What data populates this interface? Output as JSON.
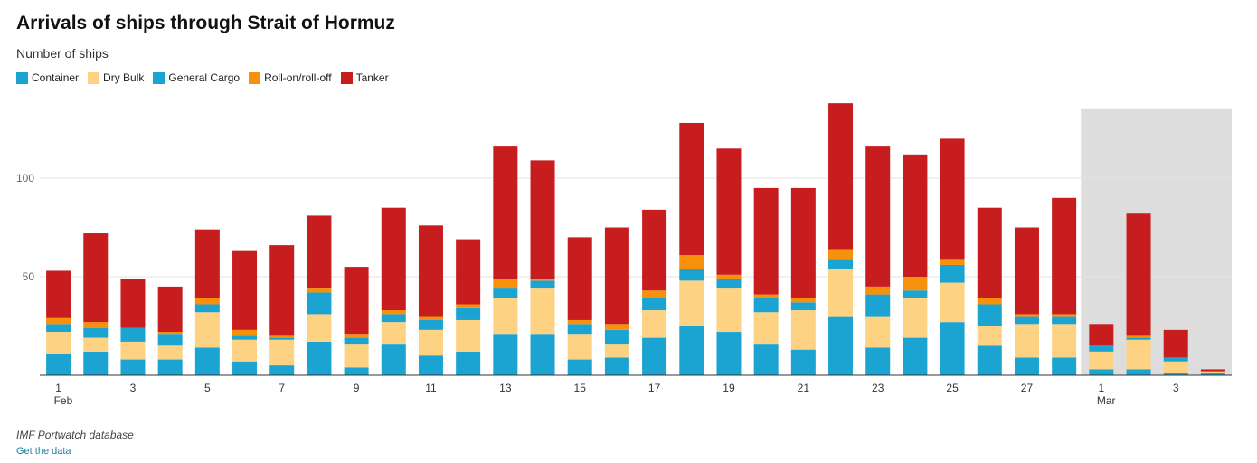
{
  "header": {
    "title": "Arrivals of ships through Strait of Hormuz",
    "subtitle": "Number of ships"
  },
  "footer": {
    "source": "IMF Portwatch database",
    "get_data": "Get the data"
  },
  "chart_data": {
    "type": "bar",
    "stacked": true,
    "title": "Arrivals of ships through Strait of Hormuz",
    "ylabel": "Number of ships",
    "ylim": [
      0,
      140
    ],
    "yticks": [
      50,
      100
    ],
    "grid": true,
    "legend_position": "top-left",
    "categories": [
      "Feb 1",
      "Feb 2",
      "Feb 3",
      "Feb 4",
      "Feb 5",
      "Feb 6",
      "Feb 7",
      "Feb 8",
      "Feb 9",
      "Feb 10",
      "Feb 11",
      "Feb 12",
      "Feb 13",
      "Feb 14",
      "Feb 15",
      "Feb 16",
      "Feb 17",
      "Feb 18",
      "Feb 19",
      "Feb 20",
      "Feb 21",
      "Feb 22",
      "Feb 23",
      "Feb 24",
      "Feb 25",
      "Feb 26",
      "Feb 27",
      "Feb 28",
      "Mar 1",
      "Mar 2",
      "Mar 3",
      "Mar 4"
    ],
    "xtick_labels": [
      {
        "index": 0,
        "label": "1",
        "sub": "Feb"
      },
      {
        "index": 2,
        "label": "3"
      },
      {
        "index": 4,
        "label": "5"
      },
      {
        "index": 6,
        "label": "7"
      },
      {
        "index": 8,
        "label": "9"
      },
      {
        "index": 10,
        "label": "11"
      },
      {
        "index": 12,
        "label": "13"
      },
      {
        "index": 14,
        "label": "15"
      },
      {
        "index": 16,
        "label": "17"
      },
      {
        "index": 18,
        "label": "19"
      },
      {
        "index": 20,
        "label": "21"
      },
      {
        "index": 22,
        "label": "23"
      },
      {
        "index": 24,
        "label": "25"
      },
      {
        "index": 26,
        "label": "27"
      },
      {
        "index": 28,
        "label": "1",
        "sub": "Mar"
      },
      {
        "index": 30,
        "label": "3"
      }
    ],
    "highlight_from_index": 28,
    "highlight_color": "#dddddd",
    "series": [
      {
        "name": "Container",
        "color": "#1ba3d2",
        "values": [
          11,
          12,
          8,
          8,
          14,
          7,
          5,
          17,
          4,
          16,
          10,
          12,
          21,
          21,
          8,
          9,
          19,
          25,
          22,
          16,
          13,
          30,
          14,
          19,
          27,
          15,
          9,
          9,
          3,
          3,
          1,
          1
        ]
      },
      {
        "name": "Dry Bulk",
        "color": "#fdd283",
        "values": [
          11,
          7,
          9,
          7,
          18,
          11,
          13,
          14,
          12,
          11,
          13,
          16,
          18,
          23,
          13,
          7,
          14,
          23,
          22,
          16,
          20,
          24,
          16,
          20,
          20,
          10,
          17,
          17,
          9,
          15,
          6,
          1
        ]
      },
      {
        "name": "General Cargo",
        "color": "#1ba3d2",
        "values": [
          4,
          5,
          7,
          6,
          4,
          2,
          1,
          11,
          3,
          4,
          5,
          6,
          5,
          4,
          5,
          7,
          6,
          6,
          5,
          7,
          4,
          5,
          11,
          4,
          9,
          11,
          4,
          4,
          3,
          1,
          2,
          0
        ]
      },
      {
        "name": "Roll-on/roll-off",
        "color": "#f7900a",
        "values": [
          3,
          3,
          0,
          1,
          3,
          3,
          1,
          2,
          2,
          2,
          2,
          2,
          5,
          1,
          2,
          3,
          4,
          7,
          2,
          2,
          2,
          5,
          4,
          7,
          3,
          3,
          1,
          1,
          0,
          1,
          0,
          0
        ]
      },
      {
        "name": "Tanker",
        "color": "#c81d1f",
        "values": [
          24,
          45,
          25,
          23,
          35,
          40,
          46,
          37,
          34,
          52,
          46,
          33,
          67,
          60,
          42,
          49,
          41,
          67,
          64,
          54,
          56,
          74,
          71,
          62,
          61,
          46,
          44,
          59,
          11,
          62,
          14,
          1
        ]
      }
    ]
  }
}
